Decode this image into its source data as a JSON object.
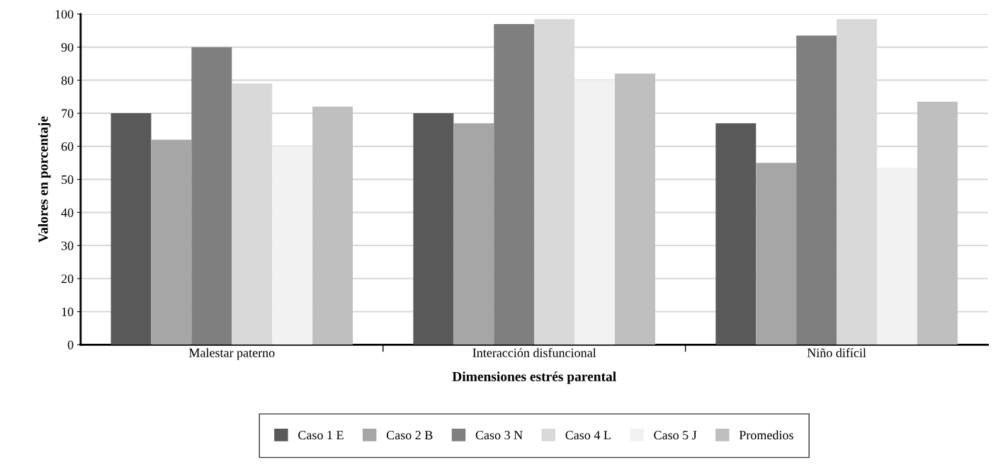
{
  "chart_data": {
    "type": "bar",
    "xlabel": "Dimensiones estrés parental",
    "ylabel": "Valores en porcentaje",
    "categories": [
      "Malestar paterno",
      "Interacción disfuncional",
      "Niño difícil"
    ],
    "series": [
      {
        "name": "Caso 1 E",
        "color": "#595959",
        "values": [
          70,
          70,
          67
        ]
      },
      {
        "name": "Caso 2 B",
        "color": "#a6a6a6",
        "values": [
          62,
          67,
          55
        ]
      },
      {
        "name": "Caso 3 N",
        "color": "#7f7f7f",
        "values": [
          90,
          97,
          93.5
        ]
      },
      {
        "name": "Caso 4 L",
        "color": "#d9d9d9",
        "values": [
          79,
          98.5,
          98.5
        ]
      },
      {
        "name": "Caso 5 J",
        "color": "#f2f2f2",
        "values": [
          60,
          80,
          53.5
        ]
      },
      {
        "name": "Promedios",
        "color": "#bfbfbf",
        "values": [
          72,
          82,
          73.5
        ]
      }
    ],
    "ylim": [
      0,
      100
    ],
    "yticks": [
      0,
      10,
      20,
      30,
      40,
      50,
      60,
      70,
      80,
      90,
      100
    ],
    "grid": "y",
    "legend": "bottom"
  }
}
